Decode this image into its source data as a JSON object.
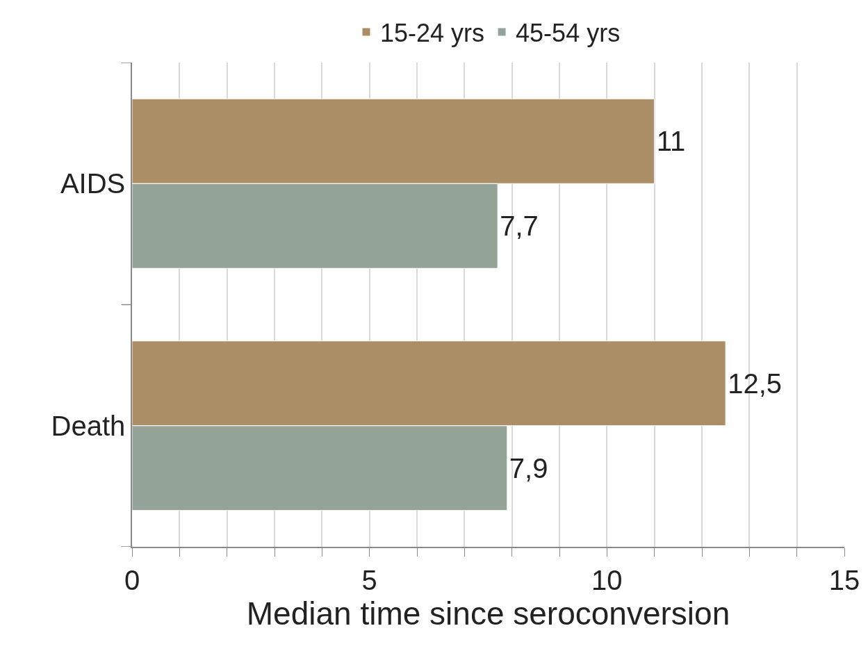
{
  "chart_data": {
    "type": "bar",
    "orientation": "horizontal",
    "xlabel": "Median time since seroconversion",
    "categories": [
      "AIDS",
      "Death"
    ],
    "series": [
      {
        "name": "15-24 yrs",
        "color": "#ab8e66",
        "values": [
          11,
          12.5
        ],
        "value_labels": [
          "11",
          "12,5"
        ]
      },
      {
        "name": "45-54 yrs",
        "color": "#93a398",
        "values": [
          7.7,
          7.9
        ],
        "value_labels": [
          "7,7",
          "7,9"
        ]
      }
    ],
    "xlim": [
      0,
      15
    ],
    "xticks": [
      0,
      {
        "value": 1,
        "label": null
      },
      {
        "value": 2,
        "label": null
      },
      {
        "value": 3,
        "label": null
      },
      {
        "value": 4,
        "label": null
      },
      5,
      {
        "value": 6,
        "label": null
      },
      {
        "value": 7,
        "label": null
      },
      {
        "value": 8,
        "label": null
      },
      {
        "value": 9,
        "label": null
      },
      10,
      {
        "value": 11,
        "label": null
      },
      {
        "value": 12,
        "label": null
      },
      {
        "value": 13,
        "label": null
      },
      {
        "value": 14,
        "label": null
      },
      15
    ],
    "grid": "x",
    "legend": "top"
  }
}
